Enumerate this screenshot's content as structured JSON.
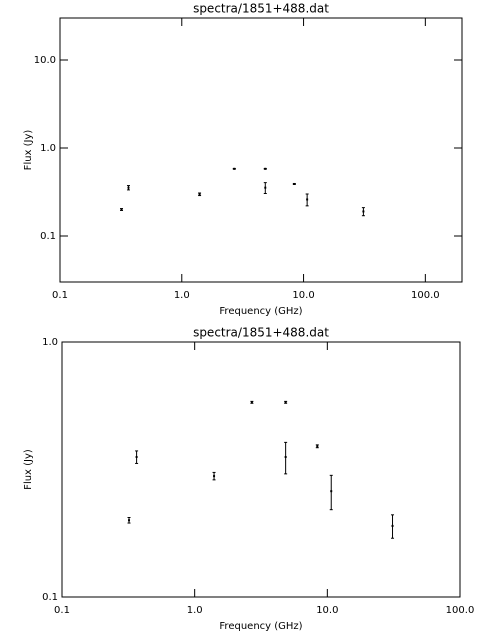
{
  "chart_data": [
    {
      "type": "errorbar",
      "title": "spectra/1851+488.dat",
      "xlabel": "Frequency (GHz)",
      "ylabel": "Flux (Jy)",
      "xscale": "log",
      "yscale": "log",
      "color": "#000000",
      "xlim": [
        0.1,
        200
      ],
      "ylim": [
        0.03,
        30
      ],
      "xticks": [
        0.1,
        {
          "value": 1,
          "label": "1.0"
        },
        {
          "value": 10,
          "label": "10.0"
        },
        {
          "value": 100,
          "label": "100.0"
        }
      ],
      "yticks": [
        0.1,
        {
          "value": 1,
          "label": "1.0"
        },
        {
          "value": 10,
          "label": "10.0"
        }
      ],
      "x": [
        0.32,
        0.365,
        1.4,
        2.7,
        4.85,
        4.85,
        8.4,
        10.7,
        31
      ],
      "values": [
        0.2,
        0.354,
        0.298,
        0.58,
        0.58,
        0.354,
        0.39,
        0.26,
        0.19
      ],
      "errors": [
        0.005,
        0.02,
        0.01,
        0.005,
        0.005,
        0.05,
        0.005,
        0.04,
        0.02
      ]
    },
    {
      "type": "errorbar",
      "title": "spectra/1851+488.dat",
      "xlabel": "Frequency (GHz)",
      "ylabel": "Flux (Jy)",
      "xscale": "log",
      "yscale": "log",
      "color": "#000000",
      "xlim": [
        0.1,
        100
      ],
      "ylim": [
        0.1,
        1
      ],
      "xticks": [
        0.1,
        {
          "value": 1,
          "label": "1.0"
        },
        {
          "value": 10,
          "label": "10.0"
        },
        {
          "value": 100,
          "label": "100.0"
        }
      ],
      "yticks": [
        0.1,
        {
          "value": 1,
          "label": "1.0"
        }
      ],
      "x": [
        0.32,
        0.365,
        1.4,
        2.7,
        4.85,
        4.85,
        8.4,
        10.7,
        31
      ],
      "values": [
        0.2,
        0.354,
        0.298,
        0.58,
        0.58,
        0.354,
        0.39,
        0.26,
        0.19
      ],
      "errors": [
        0.005,
        0.02,
        0.01,
        0.005,
        0.005,
        0.05,
        0.005,
        0.04,
        0.02
      ]
    }
  ]
}
